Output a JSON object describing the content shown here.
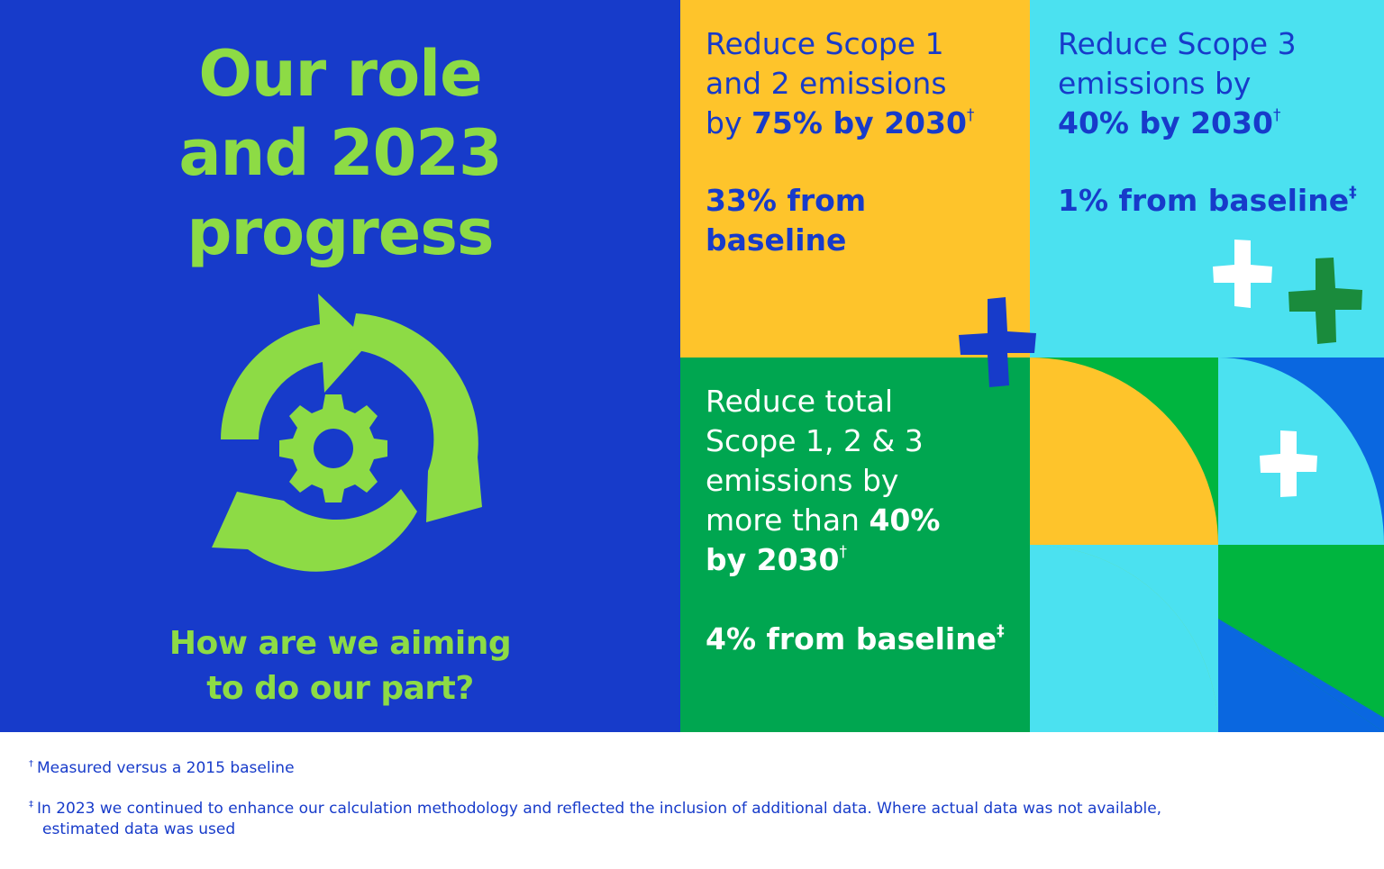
{
  "left_panel": {
    "title_lines": [
      "Our role",
      "and 2023",
      "progress"
    ],
    "question_lines": [
      "How are we aiming",
      "to do our part?"
    ],
    "icon": "recycle-gear-icon"
  },
  "goals": {
    "scope12": {
      "text_a": "Reduce Scope 1",
      "text_b": "and 2 emissions",
      "text_c": "by ",
      "bold": "75% by 2030",
      "mark": "†",
      "stat_line1": "33% from",
      "stat_line2": "baseline"
    },
    "scope3": {
      "text_a": "Reduce Scope 3",
      "text_b": "emissions by",
      "bold": "40% by 2030",
      "mark": "†",
      "stat": "1% from baseline",
      "stat_mark": "‡"
    },
    "total": {
      "text_a": "Reduce total",
      "text_b": "Scope 1, 2 & 3",
      "text_c": "emissions by",
      "text_d": "more than ",
      "bold_a": "40%",
      "bold_b": "by 2030",
      "mark": "†",
      "stat": "4% from baseline",
      "stat_mark": "‡"
    }
  },
  "footnotes": {
    "note1_mark": "†",
    "note1": "Measured versus a 2015 baseline",
    "note2_mark": "‡",
    "note2_a": "In 2023 we continued to enhance our calculation methodology and reflected the inclusion of additional data. Where actual data was not available,",
    "note2_b": "estimated data was used"
  },
  "colors": {
    "blue": "#173bca",
    "lime": "#8ddb45",
    "yellow": "#fec42b",
    "cyan": "#4be1f0",
    "green": "#00a650",
    "dark_green": "#1a8b3c",
    "bright_blue": "#0a67e0"
  }
}
